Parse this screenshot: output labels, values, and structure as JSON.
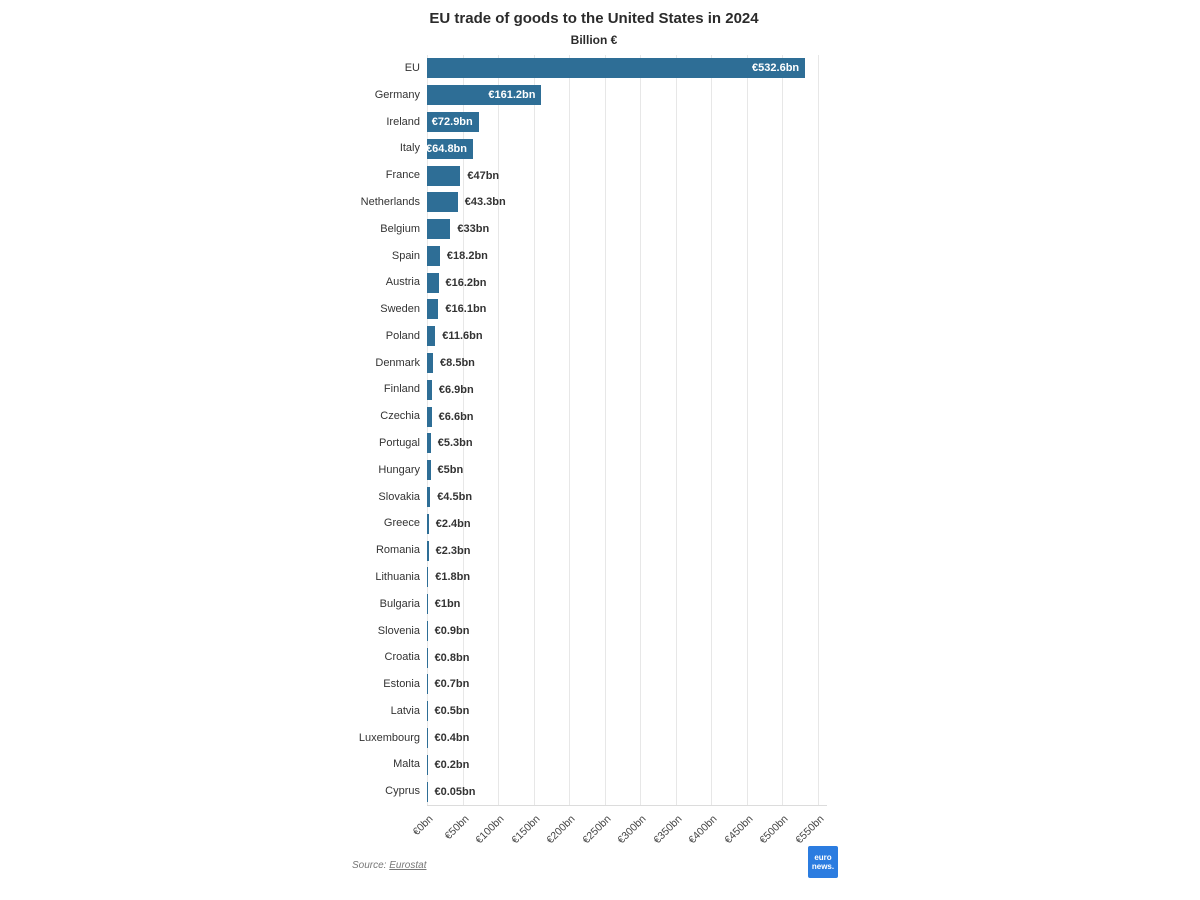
{
  "chart_data": {
    "type": "bar",
    "orientation": "horizontal",
    "title": "EU trade of goods to the United States in 2024",
    "subtitle": "Billion €",
    "xlabel": "",
    "ylabel": "",
    "xlim": [
      0,
      550
    ],
    "grid": "vertical",
    "legend": "none",
    "bar_color": "#2e6e96",
    "inside_label_color": "#ffffff",
    "outside_label_color": "#333333",
    "categories": [
      "EU",
      "Germany",
      "Ireland",
      "Italy",
      "France",
      "Netherlands",
      "Belgium",
      "Spain",
      "Austria",
      "Sweden",
      "Poland",
      "Denmark",
      "Finland",
      "Czechia",
      "Portugal",
      "Hungary",
      "Slovakia",
      "Greece",
      "Romania",
      "Lithuania",
      "Bulgaria",
      "Slovenia",
      "Croatia",
      "Estonia",
      "Latvia",
      "Luxembourg",
      "Malta",
      "Cyprus"
    ],
    "values": [
      532.6,
      161.2,
      72.9,
      64.8,
      47,
      43.3,
      33,
      18.2,
      16.2,
      16.1,
      11.6,
      8.5,
      6.9,
      6.6,
      5.3,
      5,
      4.5,
      2.4,
      2.3,
      1.8,
      1,
      0.9,
      0.8,
      0.7,
      0.5,
      0.4,
      0.2,
      0.05
    ],
    "value_labels": [
      "€532.6bn",
      "€161.2bn",
      "€72.9bn",
      "€64.8bn",
      "€47bn",
      "€43.3bn",
      "€33bn",
      "€18.2bn",
      "€16.2bn",
      "€16.1bn",
      "€11.6bn",
      "€8.5bn",
      "€6.9bn",
      "€6.6bn",
      "€5.3bn",
      "€5bn",
      "€4.5bn",
      "€2.4bn",
      "€2.3bn",
      "€1.8bn",
      "€1bn",
      "€0.9bn",
      "€0.8bn",
      "€0.7bn",
      "€0.5bn",
      "€0.4bn",
      "€0.2bn",
      "€0.05bn"
    ],
    "x_ticks": [
      "€0bn",
      "€50bn",
      "€100bn",
      "€150bn",
      "€200bn",
      "€250bn",
      "€300bn",
      "€350bn",
      "€400bn",
      "€450bn",
      "€500bn",
      "€550bn"
    ]
  },
  "source": {
    "prefix": "Source:",
    "link_text": "Eurostat"
  },
  "logo": {
    "line1": "euro",
    "line2": "news."
  }
}
